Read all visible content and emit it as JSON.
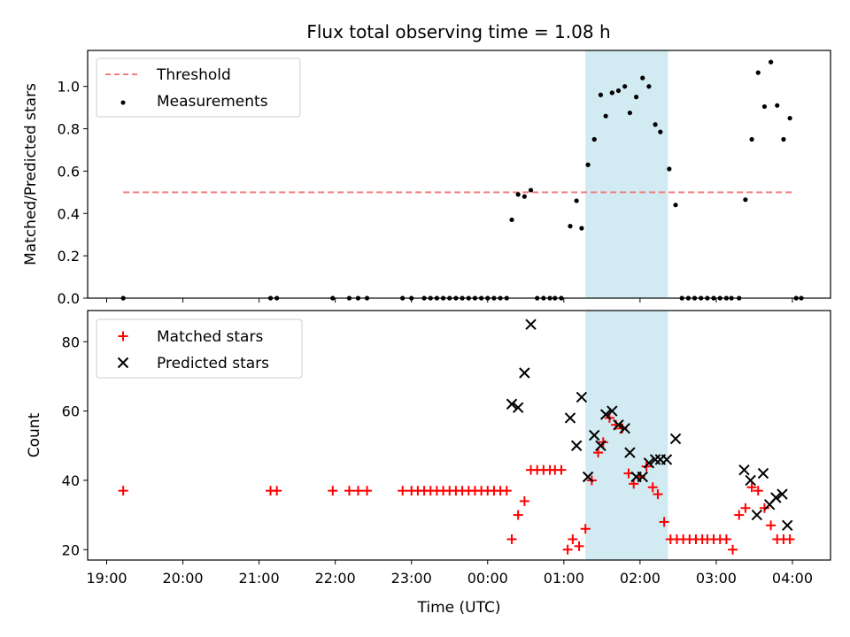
{
  "chart_data": [
    {
      "type": "scatter",
      "title": "Flux total observing time = 1.08 h",
      "ylabel": "Matched/Predicted stars",
      "ylim": [
        0,
        1.17
      ],
      "yticks": [
        0.0,
        0.2,
        0.4,
        0.6,
        0.8,
        1.0
      ],
      "ytick_labels": [
        "0.0",
        "0.2",
        "0.4",
        "0.6",
        "0.8",
        "1.0"
      ],
      "legend_position": "top-left",
      "threshold": {
        "name": "Threshold",
        "value": 0.5,
        "x_start": "19:13",
        "x_end": "04:00",
        "color": "#f08080"
      },
      "series": [
        {
          "name": "Measurements",
          "color": "#000000",
          "points": [
            [
              "19:13",
              0
            ],
            [
              "21:09",
              0
            ],
            [
              "21:14",
              0
            ],
            [
              "21:58",
              0
            ],
            [
              "22:11",
              0
            ],
            [
              "22:18",
              0
            ],
            [
              "22:25",
              0
            ],
            [
              "22:53",
              0
            ],
            [
              "23:00",
              0
            ],
            [
              "23:10",
              0
            ],
            [
              "23:15",
              0
            ],
            [
              "23:20",
              0
            ],
            [
              "23:25",
              0
            ],
            [
              "23:30",
              0
            ],
            [
              "23:35",
              0
            ],
            [
              "23:40",
              0
            ],
            [
              "23:45",
              0
            ],
            [
              "23:50",
              0
            ],
            [
              "23:55",
              0
            ],
            [
              "00:00",
              0
            ],
            [
              "00:05",
              0
            ],
            [
              "00:10",
              0
            ],
            [
              "00:15",
              0
            ],
            [
              "00:19",
              0.37
            ],
            [
              "00:24",
              0.49
            ],
            [
              "00:29",
              0.48
            ],
            [
              "00:34",
              0.51
            ],
            [
              "00:39",
              0
            ],
            [
              "00:44",
              0
            ],
            [
              "00:49",
              0
            ],
            [
              "00:53",
              0
            ],
            [
              "00:58",
              0
            ],
            [
              "01:05",
              0.34
            ],
            [
              "01:10",
              0.46
            ],
            [
              "01:14",
              0.33
            ],
            [
              "01:19",
              0.63
            ],
            [
              "01:24",
              0.75
            ],
            [
              "01:29",
              0.96
            ],
            [
              "01:33",
              0.86
            ],
            [
              "01:38",
              0.97
            ],
            [
              "01:43",
              0.98
            ],
            [
              "01:48",
              1.0
            ],
            [
              "01:52",
              0.875
            ],
            [
              "01:57",
              0.95
            ],
            [
              "02:02",
              1.04
            ],
            [
              "02:07",
              1.0
            ],
            [
              "02:12",
              0.82
            ],
            [
              "02:16",
              0.785
            ],
            [
              "02:23",
              0.61
            ],
            [
              "02:28",
              0.44
            ],
            [
              "02:33",
              0
            ],
            [
              "02:38",
              0
            ],
            [
              "02:43",
              0
            ],
            [
              "02:48",
              0
            ],
            [
              "02:53",
              0
            ],
            [
              "02:58",
              0
            ],
            [
              "03:03",
              0
            ],
            [
              "03:08",
              0
            ],
            [
              "03:12",
              0
            ],
            [
              "03:18",
              0
            ],
            [
              "03:23",
              0.465
            ],
            [
              "03:28",
              0.75
            ],
            [
              "03:33",
              1.065
            ],
            [
              "03:38",
              0.905
            ],
            [
              "03:43",
              1.115
            ],
            [
              "03:48",
              0.91
            ],
            [
              "03:53",
              0.75
            ],
            [
              "03:58",
              0.85
            ],
            [
              "04:03",
              0
            ],
            [
              "04:07",
              0
            ]
          ]
        }
      ]
    },
    {
      "type": "scatter",
      "xlabel": "Time (UTC)",
      "ylabel": "Count",
      "ylim": [
        17,
        89
      ],
      "yticks": [
        20,
        40,
        60,
        80
      ],
      "ytick_labels": [
        "20",
        "40",
        "60",
        "80"
      ],
      "legend_position": "top-left",
      "series": [
        {
          "name": "Matched stars",
          "marker": "plus",
          "color": "#ff0000",
          "points": [
            [
              "19:13",
              37
            ],
            [
              "21:09",
              37
            ],
            [
              "21:14",
              37
            ],
            [
              "21:58",
              37
            ],
            [
              "22:11",
              37
            ],
            [
              "22:18",
              37
            ],
            [
              "22:25",
              37
            ],
            [
              "22:53",
              37
            ],
            [
              "23:00",
              37
            ],
            [
              "23:05",
              37
            ],
            [
              "23:10",
              37
            ],
            [
              "23:15",
              37
            ],
            [
              "23:20",
              37
            ],
            [
              "23:25",
              37
            ],
            [
              "23:30",
              37
            ],
            [
              "23:35",
              37
            ],
            [
              "23:40",
              37
            ],
            [
              "23:45",
              37
            ],
            [
              "23:50",
              37
            ],
            [
              "23:55",
              37
            ],
            [
              "00:00",
              37
            ],
            [
              "00:05",
              37
            ],
            [
              "00:10",
              37
            ],
            [
              "00:15",
              37
            ],
            [
              "00:19",
              23
            ],
            [
              "00:24",
              30
            ],
            [
              "00:29",
              34
            ],
            [
              "00:34",
              43
            ],
            [
              "00:39",
              43
            ],
            [
              "00:44",
              43
            ],
            [
              "00:49",
              43
            ],
            [
              "00:53",
              43
            ],
            [
              "00:58",
              43
            ],
            [
              "01:03",
              20
            ],
            [
              "01:07",
              23
            ],
            [
              "01:12",
              21
            ],
            [
              "01:17",
              26
            ],
            [
              "01:22",
              40
            ],
            [
              "01:27",
              48
            ],
            [
              "01:31",
              51
            ],
            [
              "01:36",
              58
            ],
            [
              "01:41",
              56
            ],
            [
              "01:46",
              55
            ],
            [
              "01:51",
              42
            ],
            [
              "01:55",
              39
            ],
            [
              "02:00",
              41
            ],
            [
              "02:05",
              44
            ],
            [
              "02:10",
              38
            ],
            [
              "02:14",
              36
            ],
            [
              "02:19",
              28
            ],
            [
              "02:24",
              23
            ],
            [
              "02:29",
              23
            ],
            [
              "02:34",
              23
            ],
            [
              "02:39",
              23
            ],
            [
              "02:44",
              23
            ],
            [
              "02:49",
              23
            ],
            [
              "02:53",
              23
            ],
            [
              "02:58",
              23
            ],
            [
              "03:03",
              23
            ],
            [
              "03:08",
              23
            ],
            [
              "03:13",
              20
            ],
            [
              "03:18",
              30
            ],
            [
              "03:23",
              32
            ],
            [
              "03:28",
              38
            ],
            [
              "03:33",
              37
            ],
            [
              "03:38",
              32
            ],
            [
              "03:43",
              27
            ],
            [
              "03:48",
              23
            ],
            [
              "03:53",
              23
            ],
            [
              "03:58",
              23
            ]
          ]
        },
        {
          "name": "Predicted stars",
          "marker": "x",
          "color": "#000000",
          "points": [
            [
              "00:19",
              62
            ],
            [
              "00:24",
              61
            ],
            [
              "00:29",
              71
            ],
            [
              "00:34",
              85
            ],
            [
              "01:05",
              58
            ],
            [
              "01:10",
              50
            ],
            [
              "01:14",
              64
            ],
            [
              "01:19",
              41
            ],
            [
              "01:24",
              53
            ],
            [
              "01:29",
              50
            ],
            [
              "01:33",
              59
            ],
            [
              "01:38",
              60
            ],
            [
              "01:43",
              56
            ],
            [
              "01:48",
              55
            ],
            [
              "01:52",
              48
            ],
            [
              "01:57",
              41
            ],
            [
              "02:02",
              41
            ],
            [
              "02:07",
              45
            ],
            [
              "02:12",
              46
            ],
            [
              "02:16",
              46
            ],
            [
              "02:21",
              46
            ],
            [
              "02:28",
              52
            ],
            [
              "03:22",
              43
            ],
            [
              "03:27",
              40
            ],
            [
              "03:32",
              30
            ],
            [
              "03:37",
              42
            ],
            [
              "03:42",
              33
            ],
            [
              "03:47",
              35
            ],
            [
              "03:52",
              36
            ],
            [
              "03:56",
              27
            ]
          ]
        }
      ]
    }
  ],
  "shared_x": {
    "xlim": [
      "18:45",
      "04:30"
    ],
    "ticks": [
      "19:00",
      "20:00",
      "21:00",
      "22:00",
      "23:00",
      "00:00",
      "01:00",
      "02:00",
      "03:00",
      "04:00"
    ],
    "shaded_region": {
      "start": "01:17",
      "end": "02:22",
      "color": "#add8e6"
    }
  }
}
